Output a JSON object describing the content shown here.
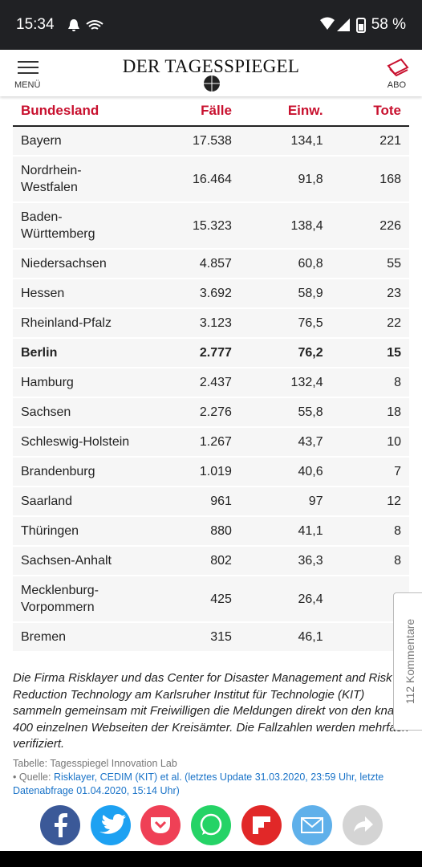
{
  "status_bar": {
    "time": "15:34",
    "battery": "58 %"
  },
  "header": {
    "menu": "MENÜ",
    "logo": "DER TAGESSPIEGEL",
    "abo": "ABO"
  },
  "table": {
    "columns": [
      "Bundesland",
      "Fälle",
      "Einw.",
      "Tote"
    ],
    "rows": [
      [
        "Bayern",
        "17.538",
        "134,1",
        "221"
      ],
      [
        "Nordrhein-Westfalen",
        "16.464",
        "91,8",
        "168"
      ],
      [
        "Baden-Württemberg",
        "15.323",
        "138,4",
        "226"
      ],
      [
        "Niedersachsen",
        "4.857",
        "60,8",
        "55"
      ],
      [
        "Hessen",
        "3.692",
        "58,9",
        "23"
      ],
      [
        "Rheinland-Pfalz",
        "3.123",
        "76,5",
        "22"
      ],
      [
        "Berlin",
        "2.777",
        "76,2",
        "15"
      ],
      [
        "Hamburg",
        "2.437",
        "132,4",
        "8"
      ],
      [
        "Sachsen",
        "2.276",
        "55,8",
        "18"
      ],
      [
        "Schleswig-Holstein",
        "1.267",
        "43,7",
        "10"
      ],
      [
        "Brandenburg",
        "1.019",
        "40,6",
        "7"
      ],
      [
        "Saarland",
        "961",
        "97",
        "12"
      ],
      [
        "Thüringen",
        "880",
        "41,1",
        "8"
      ],
      [
        "Sachsen-Anhalt",
        "802",
        "36,3",
        "8"
      ],
      [
        "Mecklenburg-Vorpommern",
        "425",
        "26,4"
      ],
      [
        "Bremen",
        "315",
        "46,1"
      ]
    ],
    "highlighted_row": 6
  },
  "note": "Die Firma Risklayer und das Center for Disaster Management and Risk Reduction Technology am Karlsruher Institut für Technologie (KIT) sammeln gemeinsam mit Freiwilligen die Meldungen direkt von den knapp 400 einzelnen Webseiten der Kreisämter. Die Fallzahlen werden mehrfach verifiziert.",
  "source": {
    "table_credit": "Tabelle: Tagesspiegel Innovation Lab",
    "label": "Quelle:",
    "link": "Risklayer, CEDIM (KIT) et al. (letztes Update 31.03.2020, 23:59 Uhr, letzte Datenabfrage 01.04.2020, 15:14 Uhr)"
  },
  "comments_tab": "112 Kommentare"
}
